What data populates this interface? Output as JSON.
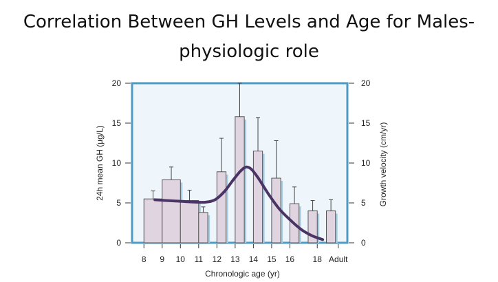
{
  "slide": {
    "title_line_1": "Correlation Between GH Levels and Age for Males-",
    "title_line_2": "physiologic role"
  },
  "chart_data": {
    "type": "bar",
    "categories": [
      "8",
      "9",
      "10",
      "11",
      "12",
      "13",
      "14",
      "15",
      "16",
      "18",
      "Adult"
    ],
    "xlabel": "Chronologic age (yr)",
    "ylabel": "24h mean GH (µg/L)",
    "y2label": "Growth velocity (cm/yr)",
    "ylim": [
      0,
      20
    ],
    "y2lim": [
      0,
      20
    ],
    "yticks": [
      0,
      5,
      10,
      15,
      20
    ],
    "series": [
      {
        "name": "24h mean GH",
        "bar_start_age": [
          8,
          9,
          10,
          11,
          12,
          13,
          14,
          15,
          16,
          17,
          18
        ],
        "bar_end_age": [
          9,
          10,
          11,
          11.5,
          12.5,
          13.5,
          14.5,
          15.5,
          16.5,
          17.5,
          18.5
        ],
        "values": [
          5.5,
          7.9,
          5.3,
          3.8,
          8.9,
          15.8,
          11.5,
          8.1,
          4.9,
          4.0,
          4.0
        ],
        "error": [
          1.0,
          1.6,
          1.3,
          0.7,
          4.2,
          4.2,
          4.2,
          4.7,
          2.1,
          1.3,
          1.4
        ]
      },
      {
        "name": "Growth velocity",
        "type": "line",
        "x": [
          8.6,
          9.2,
          10.0,
          10.8,
          11.4,
          11.9,
          12.4,
          12.9,
          13.3,
          13.6,
          13.9,
          14.3,
          14.8,
          15.4,
          16.0,
          16.6,
          17.2,
          17.8
        ],
        "y": [
          5.4,
          5.3,
          5.2,
          5.1,
          5.1,
          5.4,
          6.4,
          7.9,
          9.0,
          9.5,
          9.2,
          8.0,
          6.2,
          4.3,
          2.9,
          1.7,
          0.9,
          0.4
        ]
      }
    ]
  }
}
